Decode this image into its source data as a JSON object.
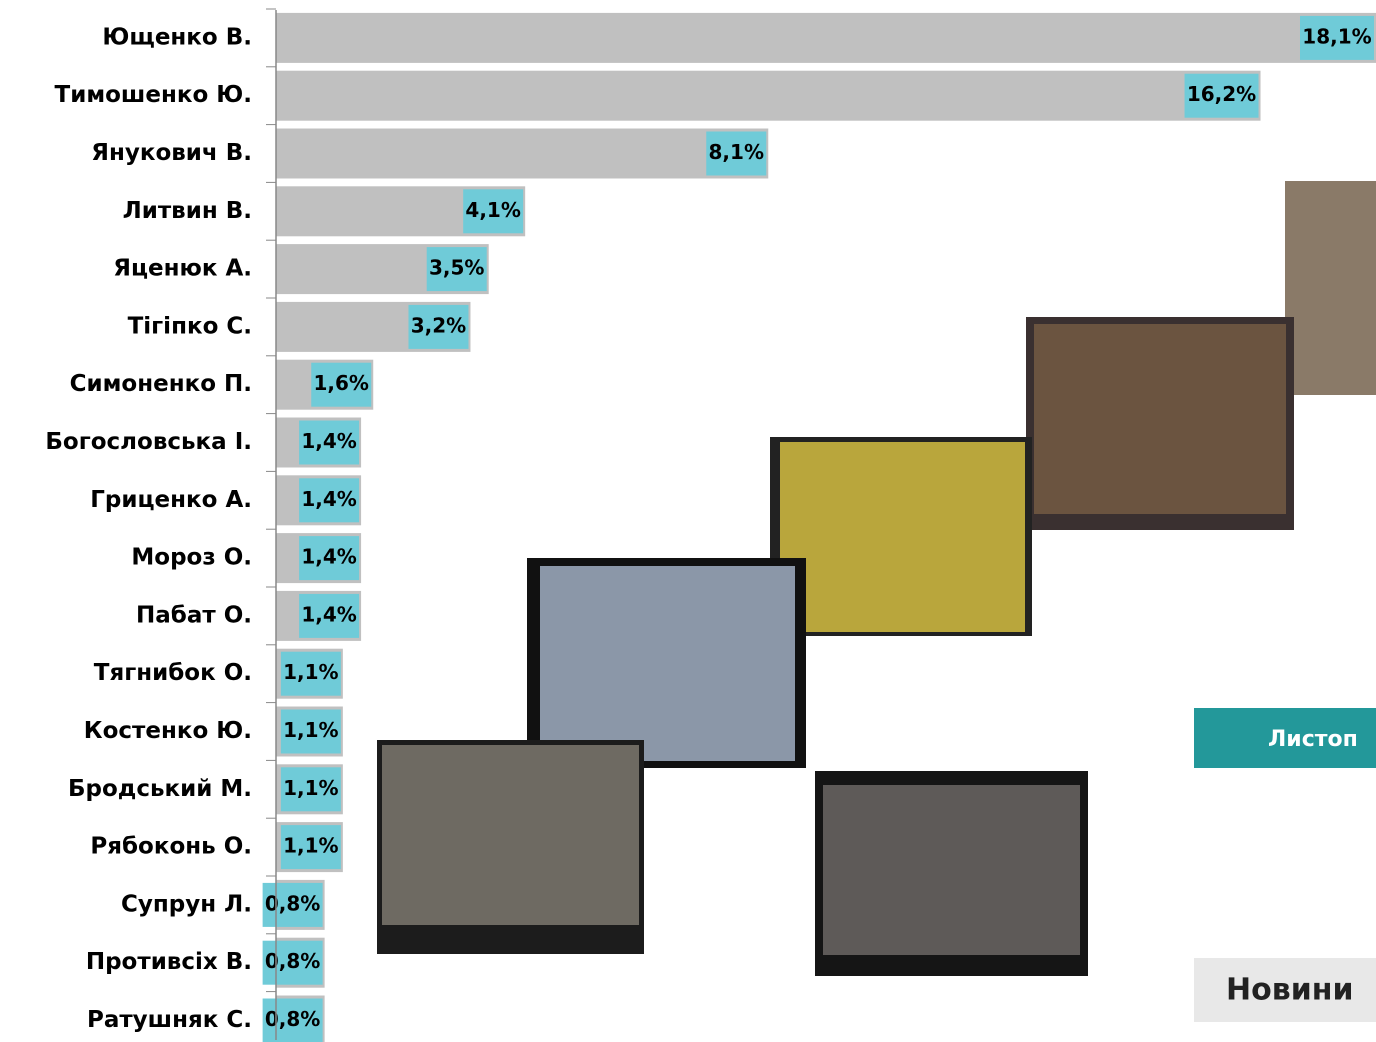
{
  "chart_data": {
    "type": "bar",
    "orientation": "horizontal",
    "categories": [
      "Ющенко В.",
      "Тимошенко Ю.",
      "Янукович В.",
      "Литвин В.",
      "Яценюк А.",
      "Тігіпко С.",
      "Симоненко П.",
      "Богословська І.",
      "Гриценко А.",
      "Мороз О.",
      "Пабат О.",
      "Тягнибок О.",
      "Костенко Ю.",
      "Бродський М.",
      "Рябоконь О.",
      "Супрун Л.",
      "Противсіх В.",
      "Ратушняк С."
    ],
    "values": [
      18.1,
      16.2,
      8.1,
      4.1,
      3.5,
      3.2,
      1.6,
      1.4,
      1.4,
      1.4,
      1.4,
      1.1,
      1.1,
      1.1,
      1.1,
      0.8,
      0.8,
      0.8
    ],
    "value_labels": [
      "18,1%",
      "16,2%",
      "8,1%",
      "4,1%",
      "3,5%",
      "3,2%",
      "1,6%",
      "1,4%",
      "1,4%",
      "1,4%",
      "1,4%",
      "1,1%",
      "1,1%",
      "1,1%",
      "1,1%",
      "0,8%",
      "0,8%",
      "0,8%"
    ],
    "color": "#c0c0c0",
    "label_color": "#6fcbd8",
    "xlim": [
      0,
      18.1
    ]
  },
  "links": [
    "Листоп",
    "Новини"
  ]
}
